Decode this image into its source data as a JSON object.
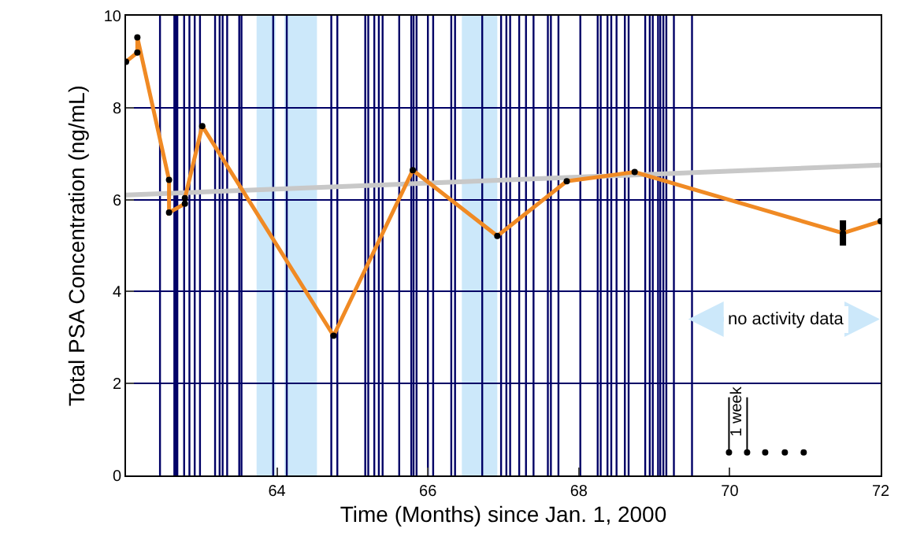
{
  "chart_data": {
    "type": "line",
    "xlabel": "Time (Months) since Jan. 1, 2000",
    "ylabel": "Total PSA Concentration (ng/mL)",
    "xlim": [
      62,
      72
    ],
    "ylim": [
      0,
      10
    ],
    "xticks": [
      64,
      66,
      68,
      70,
      72
    ],
    "yticks": [
      0,
      2,
      4,
      6,
      8,
      10
    ],
    "grid": "y",
    "series": [
      {
        "color": "#c8c8c8",
        "marker": "none",
        "line_style": "solid",
        "x": [
          62,
          72
        ],
        "values": [
          6.1,
          6.75
        ]
      },
      {
        "color": "#f08a24",
        "marker": "circle",
        "line_style": "solid",
        "x": [
          62.0,
          62.15,
          62.15,
          62.57,
          62.57,
          62.78,
          62.78,
          63.01,
          64.75,
          65.8,
          66.92,
          67.84,
          68.74,
          71.5,
          72.0
        ],
        "values": [
          9.0,
          9.2,
          9.53,
          6.43,
          5.72,
          5.91,
          6.03,
          7.6,
          3.04,
          6.64,
          5.21,
          6.4,
          6.6,
          5.27,
          5.53
        ],
        "errors": [
          null,
          null,
          null,
          null,
          null,
          null,
          null,
          null,
          null,
          null,
          null,
          null,
          null,
          [
            5.0,
            5.55
          ],
          null
        ]
      },
      {
        "type": "scatter",
        "color": "#000000",
        "marker": "circle",
        "x": [
          69.99,
          70.23,
          70.47,
          70.73,
          70.98
        ],
        "values": [
          0.5,
          0.5,
          0.5,
          0.5,
          0.5
        ]
      }
    ],
    "bands": [
      {
        "axis": "x",
        "from": 63.73,
        "to": 63.98,
        "color": "#cce8fa"
      },
      {
        "axis": "x",
        "from": 64.1,
        "to": 64.53,
        "color": "#cce8fa"
      },
      {
        "axis": "x",
        "from": 66.45,
        "to": 66.92,
        "color": "#cce8fa"
      }
    ],
    "ref_lines": [
      {
        "axis": "x",
        "value": 62.45,
        "color": "#000066"
      },
      {
        "axis": "x",
        "value": 62.64,
        "color": "#000066"
      },
      {
        "axis": "x",
        "value": 62.66,
        "color": "#000066"
      },
      {
        "axis": "x",
        "value": 62.68,
        "color": "#000066"
      },
      {
        "axis": "x",
        "value": 62.77,
        "color": "#000066"
      },
      {
        "axis": "x",
        "value": 62.84,
        "color": "#000066"
      },
      {
        "axis": "x",
        "value": 62.91,
        "color": "#000066"
      },
      {
        "axis": "x",
        "value": 62.98,
        "color": "#000066"
      },
      {
        "axis": "x",
        "value": 63.18,
        "color": "#000066"
      },
      {
        "axis": "x",
        "value": 63.24,
        "color": "#000066"
      },
      {
        "axis": "x",
        "value": 63.28,
        "color": "#000066"
      },
      {
        "axis": "x",
        "value": 63.34,
        "color": "#000066"
      },
      {
        "axis": "x",
        "value": 63.5,
        "color": "#000066"
      },
      {
        "axis": "x",
        "value": 63.53,
        "color": "#000066"
      },
      {
        "axis": "x",
        "value": 63.95,
        "color": "#000066"
      },
      {
        "axis": "x",
        "value": 64.13,
        "color": "#000066"
      },
      {
        "axis": "x",
        "value": 64.72,
        "color": "#000066"
      },
      {
        "axis": "x",
        "value": 64.8,
        "color": "#000066"
      },
      {
        "axis": "x",
        "value": 65.17,
        "color": "#000066"
      },
      {
        "axis": "x",
        "value": 65.21,
        "color": "#000066"
      },
      {
        "axis": "x",
        "value": 65.29,
        "color": "#000066"
      },
      {
        "axis": "x",
        "value": 65.35,
        "color": "#000066"
      },
      {
        "axis": "x",
        "value": 65.4,
        "color": "#000066"
      },
      {
        "axis": "x",
        "value": 65.62,
        "color": "#000066"
      },
      {
        "axis": "x",
        "value": 65.78,
        "color": "#000066"
      },
      {
        "axis": "x",
        "value": 65.81,
        "color": "#000066"
      },
      {
        "axis": "x",
        "value": 65.85,
        "color": "#000066"
      },
      {
        "axis": "x",
        "value": 66.0,
        "color": "#000066"
      },
      {
        "axis": "x",
        "value": 66.07,
        "color": "#000066"
      },
      {
        "axis": "x",
        "value": 66.31,
        "color": "#000066"
      },
      {
        "axis": "x",
        "value": 66.36,
        "color": "#000066"
      },
      {
        "axis": "x",
        "value": 66.72,
        "color": "#000066"
      },
      {
        "axis": "x",
        "value": 66.97,
        "color": "#000066"
      },
      {
        "axis": "x",
        "value": 67.04,
        "color": "#000066"
      },
      {
        "axis": "x",
        "value": 67.09,
        "color": "#000066"
      },
      {
        "axis": "x",
        "value": 67.21,
        "color": "#000066"
      },
      {
        "axis": "x",
        "value": 67.3,
        "color": "#000066"
      },
      {
        "axis": "x",
        "value": 67.4,
        "color": "#000066"
      },
      {
        "axis": "x",
        "value": 67.59,
        "color": "#000066"
      },
      {
        "axis": "x",
        "value": 67.63,
        "color": "#000066"
      },
      {
        "axis": "x",
        "value": 67.73,
        "color": "#000066"
      },
      {
        "axis": "x",
        "value": 68.02,
        "color": "#000066"
      },
      {
        "axis": "x",
        "value": 68.25,
        "color": "#000066"
      },
      {
        "axis": "x",
        "value": 68.29,
        "color": "#000066"
      },
      {
        "axis": "x",
        "value": 68.38,
        "color": "#000066"
      },
      {
        "axis": "x",
        "value": 68.43,
        "color": "#000066"
      },
      {
        "axis": "x",
        "value": 68.5,
        "color": "#000066"
      },
      {
        "axis": "x",
        "value": 68.61,
        "color": "#000066"
      },
      {
        "axis": "x",
        "value": 68.66,
        "color": "#000066"
      },
      {
        "axis": "x",
        "value": 68.88,
        "color": "#000066"
      },
      {
        "axis": "x",
        "value": 68.94,
        "color": "#000066"
      },
      {
        "axis": "x",
        "value": 68.98,
        "color": "#000066"
      },
      {
        "axis": "x",
        "value": 69.05,
        "color": "#000066"
      },
      {
        "axis": "x",
        "value": 69.08,
        "color": "#000066"
      },
      {
        "axis": "x",
        "value": 69.12,
        "color": "#000066"
      },
      {
        "axis": "x",
        "value": 69.16,
        "color": "#000066"
      },
      {
        "axis": "x",
        "value": 69.26,
        "color": "#000066"
      },
      {
        "axis": "x",
        "value": 69.5,
        "color": "#000066"
      }
    ],
    "annotations": [
      "no activity data",
      {
        "text": "1 week",
        "x": 70.11,
        "y": 0.5
      }
    ]
  }
}
